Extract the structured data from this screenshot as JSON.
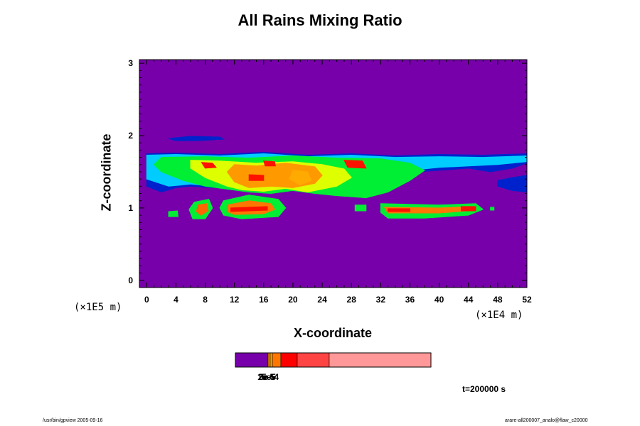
{
  "chart_data": {
    "type": "heatmap",
    "title": "All Rains Mixing Ratio",
    "xlabel": "X-coordinate",
    "ylabel": "Z-coordinate",
    "x_unit": "(×1E4 m)",
    "y_unit": "(×1E5 m)",
    "xlim": [
      -1,
      52
    ],
    "ylim": [
      -0.1,
      3.05
    ],
    "x_ticks": [
      "0",
      "4",
      "8",
      "12",
      "16",
      "20",
      "24",
      "28",
      "32",
      "36",
      "40",
      "44",
      "48",
      "52"
    ],
    "y_ticks": [
      "0",
      "1",
      "2",
      "3"
    ],
    "background_color": "#7700aa",
    "colorbar": {
      "colors": [
        "#7700aa",
        "#ff8800",
        "#ffaa00",
        "#ff7700",
        "#ff0000",
        "#ff4444",
        "#ff9999"
      ],
      "label_text": "3e-5",
      "overlapping_labels": [
        "1e-5",
        "2e-5",
        "3e-5",
        "5e-4"
      ]
    },
    "regions": [
      {
        "level": "blue",
        "color": "#0022cc",
        "points": [
          [
            0,
            1.75
          ],
          [
            4,
            1.76
          ],
          [
            10,
            1.74
          ],
          [
            16,
            1.77
          ],
          [
            22,
            1.73
          ],
          [
            28,
            1.75
          ],
          [
            34,
            1.72
          ],
          [
            40,
            1.74
          ],
          [
            46,
            1.73
          ],
          [
            52,
            1.75
          ],
          [
            52,
            1.62
          ],
          [
            50,
            1.55
          ],
          [
            47,
            1.5
          ],
          [
            44,
            1.55
          ],
          [
            40,
            1.52
          ],
          [
            37,
            1.5
          ],
          [
            34,
            1.46
          ],
          [
            31,
            1.35
          ],
          [
            28,
            1.28
          ],
          [
            24,
            1.27
          ],
          [
            20,
            1.3
          ],
          [
            16,
            1.28
          ],
          [
            12,
            1.3
          ],
          [
            9,
            1.28
          ],
          [
            6,
            1.3
          ],
          [
            4,
            1.28
          ],
          [
            2,
            1.22
          ],
          [
            0,
            1.3
          ]
        ]
      },
      {
        "level": "blue",
        "color": "#0022cc",
        "points": [
          [
            3,
            1.96
          ],
          [
            6,
            1.99
          ],
          [
            10,
            1.98
          ],
          [
            10.5,
            1.95
          ],
          [
            7,
            1.93
          ],
          [
            4,
            1.93
          ]
        ]
      },
      {
        "level": "blue",
        "color": "#0022cc",
        "points": [
          [
            48,
            1.38
          ],
          [
            50,
            1.42
          ],
          [
            52,
            1.45
          ],
          [
            52,
            1.22
          ],
          [
            50,
            1.24
          ],
          [
            48,
            1.3
          ]
        ]
      },
      {
        "level": "cyan",
        "color": "#00ccff",
        "points": [
          [
            0,
            1.73
          ],
          [
            4,
            1.74
          ],
          [
            10,
            1.72
          ],
          [
            16,
            1.75
          ],
          [
            22,
            1.71
          ],
          [
            28,
            1.73
          ],
          [
            34,
            1.7
          ],
          [
            40,
            1.71
          ],
          [
            46,
            1.7
          ],
          [
            52,
            1.72
          ],
          [
            52,
            1.64
          ],
          [
            48,
            1.6
          ],
          [
            44,
            1.58
          ],
          [
            40,
            1.56
          ],
          [
            37,
            1.53
          ],
          [
            34,
            1.48
          ],
          [
            31,
            1.38
          ],
          [
            28,
            1.31
          ],
          [
            24,
            1.29
          ],
          [
            20,
            1.33
          ],
          [
            16,
            1.31
          ],
          [
            12,
            1.33
          ],
          [
            9,
            1.3
          ],
          [
            6,
            1.33
          ],
          [
            3,
            1.3
          ],
          [
            0,
            1.4
          ]
        ]
      },
      {
        "level": "green",
        "color": "#00ee33",
        "points": [
          [
            2,
            1.7
          ],
          [
            8,
            1.71
          ],
          [
            14,
            1.69
          ],
          [
            20,
            1.72
          ],
          [
            26,
            1.69
          ],
          [
            32,
            1.68
          ],
          [
            36,
            1.62
          ],
          [
            38,
            1.52
          ],
          [
            36,
            1.38
          ],
          [
            33,
            1.22
          ],
          [
            30,
            1.14
          ],
          [
            26,
            1.17
          ],
          [
            23,
            1.2
          ],
          [
            20,
            1.24
          ],
          [
            17,
            1.2
          ],
          [
            14,
            1.22
          ],
          [
            11,
            1.26
          ],
          [
            8,
            1.3
          ],
          [
            5,
            1.38
          ],
          [
            2,
            1.5
          ],
          [
            1,
            1.6
          ]
        ]
      },
      {
        "level": "yellow",
        "color": "#ddff00",
        "points": [
          [
            6,
            1.66
          ],
          [
            10,
            1.65
          ],
          [
            15,
            1.62
          ],
          [
            20,
            1.64
          ],
          [
            24,
            1.6
          ],
          [
            27,
            1.54
          ],
          [
            28,
            1.42
          ],
          [
            26,
            1.3
          ],
          [
            22,
            1.22
          ],
          [
            19,
            1.27
          ],
          [
            16,
            1.23
          ],
          [
            13,
            1.25
          ],
          [
            11,
            1.3
          ],
          [
            8,
            1.42
          ],
          [
            6,
            1.55
          ]
        ]
      },
      {
        "level": "orange",
        "color": "#ff9900",
        "points": [
          [
            12,
            1.6
          ],
          [
            15,
            1.58
          ],
          [
            19,
            1.62
          ],
          [
            23,
            1.57
          ],
          [
            24,
            1.45
          ],
          [
            23,
            1.34
          ],
          [
            20,
            1.28
          ],
          [
            17,
            1.3
          ],
          [
            14,
            1.28
          ],
          [
            12,
            1.36
          ],
          [
            11,
            1.5
          ]
        ]
      },
      {
        "level": "gold",
        "color": "#ffaa00",
        "points": [
          [
            20,
            1.52
          ],
          [
            22,
            1.5
          ],
          [
            22.5,
            1.38
          ],
          [
            21,
            1.32
          ],
          [
            19.5,
            1.4
          ]
        ]
      },
      {
        "level": "red",
        "color": "#ff1100",
        "points": [
          [
            7.5,
            1.63
          ],
          [
            9,
            1.62
          ],
          [
            9.5,
            1.56
          ],
          [
            8,
            1.55
          ]
        ]
      },
      {
        "level": "red",
        "color": "#ff1100",
        "points": [
          [
            16,
            1.65
          ],
          [
            17.5,
            1.64
          ],
          [
            17.6,
            1.58
          ],
          [
            16.2,
            1.58
          ]
        ]
      },
      {
        "level": "red",
        "color": "#ff1100",
        "points": [
          [
            27,
            1.66
          ],
          [
            29.5,
            1.65
          ],
          [
            30,
            1.55
          ],
          [
            27.5,
            1.56
          ]
        ]
      },
      {
        "level": "red",
        "color": "#ff1100",
        "points": [
          [
            14,
            1.46
          ],
          [
            16,
            1.45
          ],
          [
            16,
            1.38
          ],
          [
            14,
            1.38
          ]
        ]
      },
      {
        "level": "green",
        "color": "#00ee33",
        "points": [
          [
            6.5,
            1.08
          ],
          [
            8.5,
            1.12
          ],
          [
            9,
            1.0
          ],
          [
            8,
            0.85
          ],
          [
            6.3,
            0.85
          ],
          [
            5.8,
            0.98
          ]
        ]
      },
      {
        "level": "orange",
        "color": "#ff6600",
        "points": [
          [
            7,
            1.04
          ],
          [
            8.2,
            1.06
          ],
          [
            8.4,
            0.96
          ],
          [
            7.4,
            0.9
          ],
          [
            6.8,
            0.95
          ]
        ]
      },
      {
        "level": "green",
        "color": "#00ee33",
        "points": [
          [
            10.5,
            1.1
          ],
          [
            14,
            1.18
          ],
          [
            18,
            1.12
          ],
          [
            19,
            1.0
          ],
          [
            18,
            0.88
          ],
          [
            13,
            0.85
          ],
          [
            10.5,
            0.9
          ],
          [
            10,
            1.0
          ]
        ]
      },
      {
        "level": "orange",
        "color": "#ff7700",
        "points": [
          [
            11,
            1.04
          ],
          [
            14,
            1.1
          ],
          [
            17,
            1.06
          ],
          [
            17.5,
            0.98
          ],
          [
            16,
            0.92
          ],
          [
            12,
            0.91
          ],
          [
            11,
            0.95
          ]
        ]
      },
      {
        "level": "red",
        "color": "#ff1100",
        "points": [
          [
            11.5,
            1.0
          ],
          [
            16.5,
            1.02
          ],
          [
            16.5,
            0.97
          ],
          [
            11.5,
            0.95
          ]
        ]
      },
      {
        "level": "green",
        "color": "#00ee33",
        "points": [
          [
            3,
            0.95
          ],
          [
            4.2,
            0.96
          ],
          [
            4.3,
            0.88
          ],
          [
            3,
            0.88
          ]
        ]
      },
      {
        "level": "green",
        "color": "#00ee33",
        "points": [
          [
            28.5,
            1.04
          ],
          [
            30,
            1.04
          ],
          [
            30,
            0.96
          ],
          [
            28.5,
            0.96
          ]
        ]
      },
      {
        "level": "green",
        "color": "#00ee33",
        "points": [
          [
            32,
            1.06
          ],
          [
            40,
            1.04
          ],
          [
            45,
            1.06
          ],
          [
            46,
            0.98
          ],
          [
            44,
            0.9
          ],
          [
            38,
            0.86
          ],
          [
            33,
            0.86
          ],
          [
            32,
            0.94
          ]
        ]
      },
      {
        "level": "orange",
        "color": "#ff7700",
        "points": [
          [
            32.5,
            1.01
          ],
          [
            40,
            1.0
          ],
          [
            44.5,
            1.02
          ],
          [
            45,
            0.97
          ],
          [
            40,
            0.93
          ],
          [
            33,
            0.93
          ]
        ]
      },
      {
        "level": "red",
        "color": "#ff1100",
        "points": [
          [
            33,
            0.99
          ],
          [
            36,
            0.99
          ],
          [
            36,
            0.95
          ],
          [
            33,
            0.95
          ]
        ]
      },
      {
        "level": "red",
        "color": "#ff1100",
        "points": [
          [
            43,
            1.02
          ],
          [
            45,
            1.02
          ],
          [
            45,
            0.96
          ],
          [
            43,
            0.96
          ]
        ]
      },
      {
        "level": "green",
        "color": "#00ee33",
        "points": [
          [
            47,
            1.01
          ],
          [
            47.5,
            1.01
          ],
          [
            47.5,
            0.97
          ],
          [
            47,
            0.97
          ]
        ]
      }
    ]
  },
  "time_label": "t=200000 s",
  "footer": {
    "left": "/usr/bin/gpview 2005-09-16",
    "right": "arare-all200007_analo@flaw_c20000"
  }
}
